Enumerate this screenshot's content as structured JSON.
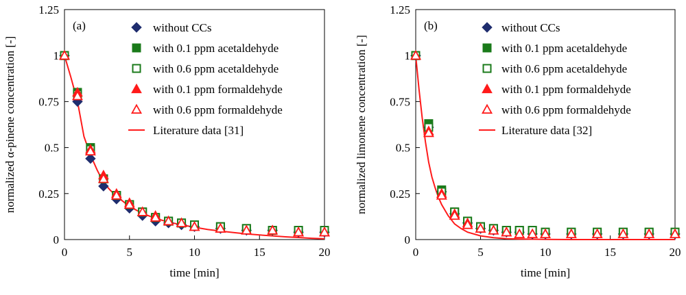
{
  "chart_data": [
    {
      "type": "scatter",
      "panel_label": "(a)",
      "xlabel": "time [min]",
      "ylabel": "normalized α-pinene concentration [-]",
      "xlim": [
        0,
        20
      ],
      "ylim": [
        0,
        1.25
      ],
      "x_ticks": [
        0,
        5,
        10,
        15,
        20
      ],
      "x_tick_labels": [
        "0",
        "5",
        "10",
        "15",
        "20"
      ],
      "y_ticks": [
        0,
        0.25,
        0.5,
        0.75,
        1,
        1.25
      ],
      "y_tick_labels": [
        "0",
        "0.25",
        "0.5",
        "0.75",
        "1",
        "1.25"
      ],
      "legend_position": "top-right",
      "series": [
        {
          "name": "without CCs",
          "marker": "diamond-filled",
          "color": "#1f2d6e",
          "x": [
            0,
            1,
            2,
            3,
            4,
            5,
            6,
            7,
            8,
            9,
            10,
            12,
            14,
            16,
            18,
            20
          ],
          "y": [
            1,
            0.75,
            0.44,
            0.29,
            0.22,
            0.17,
            0.13,
            0.1,
            0.09,
            0.08,
            0.07,
            0.06,
            0.05,
            0.05,
            0.04,
            0.04
          ]
        },
        {
          "name": "with 0.1 ppm acetaldehyde",
          "marker": "square-filled",
          "color": "#1a7a1a",
          "x": [
            0,
            1,
            2,
            3,
            4,
            5,
            6,
            7,
            8,
            9,
            10,
            12,
            14,
            16,
            18,
            20
          ],
          "y": [
            1,
            0.8,
            0.5,
            0.33,
            0.24,
            0.19,
            0.15,
            0.12,
            0.1,
            0.09,
            0.08,
            0.07,
            0.06,
            0.05,
            0.05,
            0.05
          ]
        },
        {
          "name": "with 0.6 ppm acetaldehyde",
          "marker": "square-open",
          "color": "#1a7a1a",
          "x": [
            0,
            1,
            2,
            3,
            4,
            5,
            6,
            7,
            8,
            9,
            10,
            12,
            14,
            16,
            18,
            20
          ],
          "y": [
            1,
            0.79,
            0.49,
            0.33,
            0.24,
            0.19,
            0.15,
            0.12,
            0.1,
            0.09,
            0.08,
            0.07,
            0.06,
            0.05,
            0.05,
            0.05
          ]
        },
        {
          "name": "with 0.1 ppm formaldehyde",
          "marker": "triangle-filled",
          "color": "#ff1a1a",
          "x": [
            0,
            1,
            2,
            3,
            4,
            5,
            6,
            7,
            8,
            9,
            10,
            12,
            14,
            16,
            18,
            20
          ],
          "y": [
            1,
            0.8,
            0.49,
            0.35,
            0.25,
            0.2,
            0.15,
            0.13,
            0.1,
            0.09,
            0.07,
            0.06,
            0.05,
            0.05,
            0.04,
            0.04
          ]
        },
        {
          "name": "with 0.6 ppm formaldehyde",
          "marker": "triangle-open",
          "color": "#ff1a1a",
          "x": [
            0,
            1,
            2,
            3,
            4,
            5,
            6,
            7,
            8,
            9,
            10,
            12,
            14,
            16,
            18,
            20
          ],
          "y": [
            1,
            0.78,
            0.48,
            0.33,
            0.24,
            0.19,
            0.15,
            0.12,
            0.1,
            0.09,
            0.07,
            0.06,
            0.05,
            0.05,
            0.04,
            0.04
          ]
        },
        {
          "name": "Literature data [31]",
          "marker": "line",
          "color": "#ff1a1a",
          "x": [
            0,
            0.5,
            1,
            1.5,
            2,
            2.5,
            3,
            3.5,
            4,
            5,
            6,
            7,
            8,
            9,
            10,
            11,
            12,
            13,
            14,
            15,
            16,
            17,
            18,
            19,
            20
          ],
          "y": [
            1,
            0.88,
            0.75,
            0.56,
            0.46,
            0.38,
            0.31,
            0.27,
            0.235,
            0.18,
            0.142,
            0.115,
            0.095,
            0.08,
            0.067,
            0.055,
            0.046,
            0.038,
            0.031,
            0.025,
            0.02,
            0.015,
            0.011,
            0.007,
            0.004
          ]
        }
      ]
    },
    {
      "type": "scatter",
      "panel_label": "(b)",
      "xlabel": "time [min]",
      "ylabel": "normalized limonene concentration [-]",
      "xlim": [
        0,
        20
      ],
      "ylim": [
        0,
        1.25
      ],
      "x_ticks": [
        0,
        5,
        10,
        15,
        20
      ],
      "x_tick_labels": [
        "0",
        "5",
        "10",
        "15",
        "20"
      ],
      "y_ticks": [
        0,
        0.25,
        0.5,
        0.75,
        1,
        1.25
      ],
      "y_tick_labels": [
        "0",
        "0.25",
        "0.5",
        "0.75",
        "1",
        "1.25"
      ],
      "legend_position": "top-right",
      "series": [
        {
          "name": "without CCs",
          "marker": "diamond-filled",
          "color": "#1f2d6e",
          "x": [
            0,
            1,
            2,
            3,
            4,
            5,
            6,
            7,
            8,
            9,
            10,
            12,
            14,
            16,
            18,
            20
          ],
          "y": [
            1,
            0.61,
            0.26,
            0.14,
            0.09,
            0.06,
            0.05,
            0.04,
            0.04,
            0.03,
            0.03,
            0.03,
            0.03,
            0.03,
            0.03,
            0.03
          ]
        },
        {
          "name": "with 0.1 ppm acetaldehyde",
          "marker": "square-filled",
          "color": "#1a7a1a",
          "x": [
            0,
            1,
            2,
            3,
            4,
            5,
            6,
            7,
            8,
            9,
            10,
            12,
            14,
            16,
            18,
            20
          ],
          "y": [
            1,
            0.63,
            0.27,
            0.15,
            0.1,
            0.07,
            0.06,
            0.05,
            0.05,
            0.05,
            0.04,
            0.04,
            0.04,
            0.04,
            0.04,
            0.04
          ]
        },
        {
          "name": "with 0.6 ppm acetaldehyde",
          "marker": "square-open",
          "color": "#1a7a1a",
          "x": [
            0,
            1,
            2,
            3,
            4,
            5,
            6,
            7,
            8,
            9,
            10,
            12,
            14,
            16,
            18,
            20
          ],
          "y": [
            1,
            0.61,
            0.26,
            0.15,
            0.1,
            0.07,
            0.06,
            0.05,
            0.05,
            0.05,
            0.04,
            0.04,
            0.04,
            0.04,
            0.04,
            0.04
          ]
        },
        {
          "name": "with 0.1 ppm formaldehyde",
          "marker": "triangle-filled",
          "color": "#ff1a1a",
          "x": [
            0,
            1,
            2,
            3,
            4,
            5,
            6,
            7,
            8,
            9,
            10,
            12,
            14,
            16,
            18,
            20
          ],
          "y": [
            1,
            0.59,
            0.25,
            0.14,
            0.09,
            0.06,
            0.05,
            0.04,
            0.03,
            0.03,
            0.03,
            0.03,
            0.03,
            0.03,
            0.03,
            0.03
          ]
        },
        {
          "name": "with 0.6 ppm formaldehyde",
          "marker": "triangle-open",
          "color": "#ff1a1a",
          "x": [
            0,
            1,
            2,
            3,
            4,
            5,
            6,
            7,
            8,
            9,
            10,
            12,
            14,
            16,
            18,
            20
          ],
          "y": [
            1,
            0.58,
            0.24,
            0.13,
            0.08,
            0.06,
            0.05,
            0.04,
            0.03,
            0.03,
            0.03,
            0.03,
            0.03,
            0.03,
            0.03,
            0.03
          ]
        },
        {
          "name": "Literature data [32]",
          "marker": "line",
          "color": "#ff1a1a",
          "x": [
            0,
            0.25,
            0.5,
            0.75,
            1,
            1.25,
            1.5,
            1.75,
            2,
            2.5,
            3,
            3.5,
            4,
            5,
            6,
            7,
            8,
            9,
            10,
            12,
            14,
            16,
            18,
            20
          ],
          "y": [
            1,
            0.82,
            0.66,
            0.53,
            0.42,
            0.34,
            0.28,
            0.23,
            0.19,
            0.13,
            0.085,
            0.06,
            0.04,
            0.02,
            0.01,
            0.005,
            0.003,
            0.002,
            0.001,
            0,
            0,
            0,
            0,
            0
          ]
        }
      ]
    }
  ]
}
